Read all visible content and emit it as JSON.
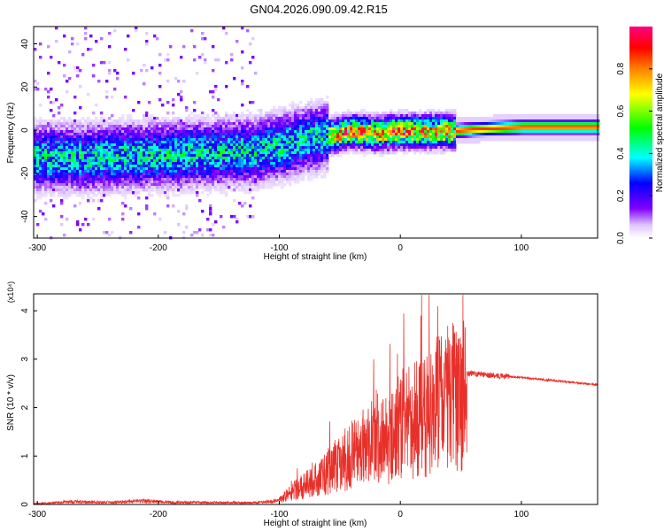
{
  "title": "GN04.2026.090.09.42.R15",
  "chart_data": [
    {
      "type": "heatmap",
      "title": "GN04.2026.090.09.42.R15",
      "xlabel": "Height of straight line (km)",
      "ylabel": "Frequency (Hz)",
      "xlim": [
        -303,
        163
      ],
      "ylim": [
        -50,
        48
      ],
      "xticks": [
        -300,
        -200,
        -100,
        0,
        100
      ],
      "yticks": [
        -40,
        -20,
        0,
        20,
        40
      ],
      "colorbar": {
        "label": "Normalized spectral amplitude",
        "range": [
          0.0,
          1.0
        ],
        "ticks": [
          0.0,
          0.2,
          0.4,
          0.6,
          0.8
        ],
        "colormap": [
          "#ffffff",
          "#e0c8ff",
          "#8000ff",
          "#0000ff",
          "#00ffff",
          "#00ff00",
          "#ffff00",
          "#ff8000",
          "#ff0000",
          "#ff0080"
        ]
      },
      "ridge": {
        "x": [
          -300,
          -250,
          -200,
          -150,
          -120,
          -100,
          -80,
          -60,
          -40,
          -20,
          0,
          20,
          40,
          60,
          100,
          163
        ],
        "frequency": [
          -12,
          -12,
          -11,
          -10,
          -9,
          -7,
          -4,
          -2,
          0,
          -1,
          0,
          0,
          0,
          1,
          2,
          2
        ]
      }
    },
    {
      "type": "line",
      "xlabel": "Height of straight line (km)",
      "ylabel": "SNR (10 * v/v)",
      "multiplier": "(x10⁴)",
      "color": "#e8302a",
      "xlim": [
        -303,
        163
      ],
      "ylim": [
        0,
        4.35
      ],
      "xticks": [
        -300,
        -200,
        -100,
        0,
        100
      ],
      "yticks": [
        0,
        1,
        2,
        3,
        4
      ],
      "envelope": {
        "x": [
          -303,
          -270,
          -240,
          -210,
          -190,
          -150,
          -120,
          -100,
          -90,
          -80,
          -70,
          -60,
          -50,
          -40,
          -30,
          -20,
          -10,
          0,
          10,
          20,
          30,
          40,
          50,
          60,
          80,
          100,
          130,
          163
        ],
        "y": [
          0.02,
          0.08,
          0.06,
          0.1,
          0.06,
          0.05,
          0.05,
          0.1,
          0.3,
          0.45,
          0.6,
          0.8,
          1.0,
          1.2,
          1.5,
          1.7,
          1.5,
          1.9,
          2.0,
          2.2,
          2.4,
          2.6,
          2.7,
          2.7,
          2.66,
          2.62,
          2.55,
          2.47
        ]
      }
    }
  ]
}
